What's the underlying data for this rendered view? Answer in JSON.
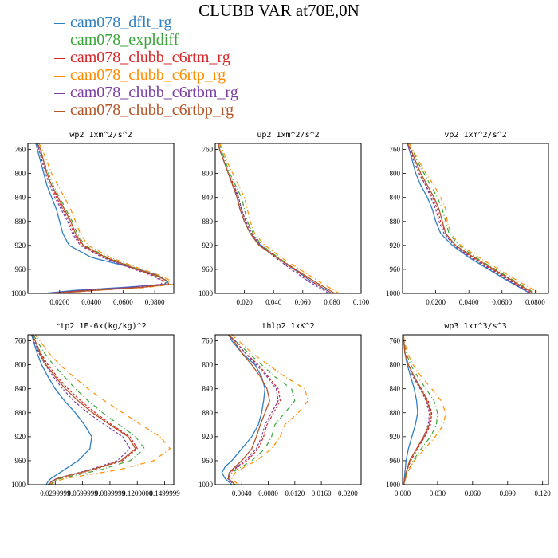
{
  "title": "CLUBB VAR at70E,0N",
  "legend": [
    {
      "name": "cam078_dflt_rg",
      "color": "#2f7fc1"
    },
    {
      "name": "cam078_expldiff",
      "color": "#3aa43a"
    },
    {
      "name": "cam078_clubb_c6rtm_rg",
      "color": "#d62728"
    },
    {
      "name": "cam078_clubb_c6rtp_rg",
      "color": "#ff8c00"
    },
    {
      "name": "cam078_clubb_c6rtbm_rg",
      "color": "#7b3fa0"
    },
    {
      "name": "cam078_clubb_c6rtbp_rg",
      "color": "#b5562a"
    }
  ],
  "chart_data": [
    {
      "type": "line",
      "title": "wp2  1xm^2/s^2",
      "xlim": [
        0.0,
        0.092
      ],
      "ylim": [
        1000,
        750
      ],
      "xticks": [
        0.02,
        0.04,
        0.06,
        0.08
      ],
      "xtick_labels": [
        "0.0200",
        "0.0400",
        "0.0600",
        "0.0800"
      ],
      "yticks": [
        760,
        800,
        840,
        880,
        920,
        960,
        1000
      ],
      "pressure": [
        750,
        760,
        780,
        800,
        820,
        840,
        860,
        880,
        900,
        920,
        940,
        960,
        970,
        980,
        985,
        990,
        995,
        1000
      ],
      "series": [
        {
          "name": "cam078_dflt_rg",
          "values": [
            0.005,
            0.006,
            0.008,
            0.01,
            0.012,
            0.015,
            0.018,
            0.02,
            0.022,
            0.026,
            0.04,
            0.07,
            0.082,
            0.088,
            0.086,
            0.06,
            0.03,
            0.01
          ]
        },
        {
          "name": "cam078_expldiff",
          "values": [
            0.006,
            0.007,
            0.01,
            0.013,
            0.016,
            0.02,
            0.024,
            0.028,
            0.031,
            0.036,
            0.05,
            0.07,
            0.08,
            0.089,
            0.09,
            0.07,
            0.04,
            0.015
          ]
        },
        {
          "name": "cam078_clubb_c6rtm_rg",
          "values": [
            0.006,
            0.007,
            0.009,
            0.012,
            0.015,
            0.018,
            0.022,
            0.026,
            0.029,
            0.034,
            0.048,
            0.068,
            0.079,
            0.086,
            0.087,
            0.066,
            0.036,
            0.013
          ]
        },
        {
          "name": "cam078_clubb_c6rtp_rg",
          "values": [
            0.007,
            0.009,
            0.012,
            0.015,
            0.019,
            0.023,
            0.027,
            0.03,
            0.033,
            0.038,
            0.052,
            0.072,
            0.083,
            0.091,
            0.092,
            0.075,
            0.045,
            0.018
          ]
        },
        {
          "name": "cam078_clubb_c6rtbm_rg",
          "values": [
            0.006,
            0.007,
            0.009,
            0.011,
            0.014,
            0.017,
            0.021,
            0.025,
            0.028,
            0.033,
            0.047,
            0.067,
            0.078,
            0.085,
            0.084,
            0.064,
            0.034,
            0.012
          ]
        },
        {
          "name": "cam078_clubb_c6rtbp_rg",
          "values": [
            0.006,
            0.008,
            0.01,
            0.012,
            0.015,
            0.019,
            0.023,
            0.027,
            0.03,
            0.035,
            0.049,
            0.069,
            0.081,
            0.088,
            0.089,
            0.072,
            0.042,
            0.016
          ]
        }
      ]
    },
    {
      "type": "line",
      "title": "up2  1xm^2/s^2",
      "xlim": [
        0.0,
        0.1
      ],
      "ylim": [
        1000,
        750
      ],
      "xticks": [
        0.02,
        0.04,
        0.06,
        0.08,
        0.1
      ],
      "xtick_labels": [
        "0.020",
        "0.040",
        "0.060",
        "0.080",
        "0.100"
      ],
      "yticks": [
        760,
        800,
        840,
        880,
        920,
        960,
        1000
      ],
      "pressure": [
        750,
        760,
        780,
        800,
        820,
        840,
        860,
        880,
        900,
        920,
        940,
        960,
        980,
        1000
      ],
      "series": [
        {
          "name": "cam078_dflt_rg",
          "values": [
            0.002,
            0.003,
            0.006,
            0.009,
            0.012,
            0.015,
            0.017,
            0.02,
            0.024,
            0.031,
            0.042,
            0.054,
            0.066,
            0.08
          ]
        },
        {
          "name": "cam078_expldiff",
          "values": [
            0.003,
            0.004,
            0.007,
            0.01,
            0.014,
            0.018,
            0.02,
            0.022,
            0.026,
            0.032,
            0.043,
            0.055,
            0.068,
            0.082
          ]
        },
        {
          "name": "cam078_clubb_c6rtm_rg",
          "values": [
            0.002,
            0.003,
            0.006,
            0.009,
            0.013,
            0.016,
            0.018,
            0.021,
            0.025,
            0.031,
            0.042,
            0.054,
            0.066,
            0.08
          ]
        },
        {
          "name": "cam078_clubb_c6rtp_rg",
          "values": [
            0.003,
            0.005,
            0.008,
            0.012,
            0.016,
            0.02,
            0.022,
            0.024,
            0.027,
            0.034,
            0.045,
            0.058,
            0.071,
            0.085
          ]
        },
        {
          "name": "cam078_clubb_c6rtbm_rg",
          "values": [
            0.002,
            0.003,
            0.006,
            0.009,
            0.012,
            0.016,
            0.018,
            0.021,
            0.025,
            0.031,
            0.041,
            0.052,
            0.064,
            0.078
          ]
        },
        {
          "name": "cam078_clubb_c6rtbp_rg",
          "values": [
            0.002,
            0.003,
            0.006,
            0.009,
            0.012,
            0.015,
            0.017,
            0.02,
            0.024,
            0.03,
            0.042,
            0.055,
            0.068,
            0.082
          ]
        }
      ]
    },
    {
      "type": "line",
      "title": "vp2  1xm^2/s^2",
      "xlim": [
        0.0,
        0.088
      ],
      "ylim": [
        1000,
        750
      ],
      "xticks": [
        0.02,
        0.04,
        0.06,
        0.08
      ],
      "xtick_labels": [
        "0.0200",
        "0.0400",
        "0.0600",
        "0.0800"
      ],
      "yticks": [
        760,
        800,
        840,
        880,
        920,
        960,
        1000
      ],
      "pressure": [
        750,
        760,
        780,
        800,
        820,
        840,
        860,
        880,
        900,
        920,
        940,
        960,
        980,
        1000
      ],
      "series": [
        {
          "name": "cam078_dflt_rg",
          "values": [
            0.003,
            0.004,
            0.006,
            0.008,
            0.011,
            0.015,
            0.018,
            0.02,
            0.023,
            0.03,
            0.04,
            0.052,
            0.064,
            0.077
          ]
        },
        {
          "name": "cam078_expldiff",
          "values": [
            0.004,
            0.006,
            0.009,
            0.013,
            0.017,
            0.021,
            0.024,
            0.026,
            0.028,
            0.034,
            0.044,
            0.056,
            0.068,
            0.08
          ]
        },
        {
          "name": "cam078_clubb_c6rtm_rg",
          "values": [
            0.003,
            0.005,
            0.007,
            0.01,
            0.014,
            0.018,
            0.021,
            0.023,
            0.026,
            0.032,
            0.042,
            0.054,
            0.066,
            0.078
          ]
        },
        {
          "name": "cam078_clubb_c6rtp_rg",
          "values": [
            0.004,
            0.006,
            0.01,
            0.014,
            0.019,
            0.023,
            0.026,
            0.027,
            0.029,
            0.035,
            0.046,
            0.058,
            0.07,
            0.083
          ]
        },
        {
          "name": "cam078_clubb_c6rtbm_rg",
          "values": [
            0.003,
            0.004,
            0.007,
            0.01,
            0.014,
            0.017,
            0.02,
            0.022,
            0.025,
            0.031,
            0.041,
            0.053,
            0.065,
            0.077
          ]
        },
        {
          "name": "cam078_clubb_c6rtbp_rg",
          "values": [
            0.003,
            0.005,
            0.008,
            0.011,
            0.015,
            0.019,
            0.022,
            0.024,
            0.026,
            0.032,
            0.043,
            0.055,
            0.067,
            0.079
          ]
        }
      ]
    },
    {
      "type": "line",
      "title": "rtp2  1E-6x(kg/kg)^2",
      "xlim": [
        0.0,
        0.16
      ],
      "ylim": [
        1000,
        750
      ],
      "xticks": [
        0.03,
        0.06,
        0.09,
        0.12,
        0.15
      ],
      "xtick_labels": [
        "0.0299999",
        "0.0599999",
        "0.0899999",
        "0.1200000",
        "0.1499999"
      ],
      "yticks": [
        760,
        800,
        840,
        880,
        920,
        960,
        1000
      ],
      "pressure": [
        750,
        760,
        780,
        800,
        820,
        840,
        860,
        880,
        900,
        920,
        940,
        960,
        975,
        985,
        990,
        995,
        1000
      ],
      "series": [
        {
          "name": "cam078_dflt_rg",
          "values": [
            0.004,
            0.006,
            0.01,
            0.015,
            0.022,
            0.03,
            0.04,
            0.052,
            0.062,
            0.07,
            0.068,
            0.055,
            0.04,
            0.03,
            0.025,
            0.022,
            0.02
          ]
        },
        {
          "name": "cam078_expldiff",
          "values": [
            0.006,
            0.01,
            0.018,
            0.028,
            0.04,
            0.052,
            0.066,
            0.082,
            0.1,
            0.118,
            0.128,
            0.112,
            0.08,
            0.05,
            0.035,
            0.028,
            0.025
          ]
        },
        {
          "name": "cam078_clubb_c6rtm_rg",
          "values": [
            0.005,
            0.008,
            0.014,
            0.022,
            0.032,
            0.044,
            0.058,
            0.074,
            0.092,
            0.112,
            0.12,
            0.104,
            0.072,
            0.045,
            0.032,
            0.026,
            0.023
          ]
        },
        {
          "name": "cam078_clubb_c6rtp_rg",
          "values": [
            0.008,
            0.013,
            0.023,
            0.035,
            0.05,
            0.066,
            0.084,
            0.104,
            0.124,
            0.145,
            0.156,
            0.138,
            0.1,
            0.06,
            0.04,
            0.03,
            0.026
          ]
        },
        {
          "name": "cam078_clubb_c6rtbm_rg",
          "values": [
            0.004,
            0.007,
            0.012,
            0.019,
            0.028,
            0.038,
            0.05,
            0.066,
            0.084,
            0.104,
            0.112,
            0.098,
            0.068,
            0.043,
            0.031,
            0.025,
            0.022
          ]
        },
        {
          "name": "cam078_clubb_c6rtbp_rg",
          "values": [
            0.005,
            0.008,
            0.013,
            0.02,
            0.03,
            0.041,
            0.055,
            0.071,
            0.09,
            0.11,
            0.118,
            0.102,
            0.07,
            0.044,
            0.032,
            0.026,
            0.023
          ]
        }
      ]
    },
    {
      "type": "line",
      "title": "thlp2  1xK^2",
      "xlim": [
        0.0,
        0.022
      ],
      "ylim": [
        1000,
        750
      ],
      "xticks": [
        0.004,
        0.008,
        0.012,
        0.016,
        0.02
      ],
      "xtick_labels": [
        "0.0040",
        "0.0080",
        "0.0120",
        "0.0160",
        "0.0200"
      ],
      "yticks": [
        760,
        800,
        840,
        880,
        920,
        960,
        1000
      ],
      "pressure": [
        750,
        760,
        780,
        800,
        820,
        840,
        860,
        880,
        900,
        920,
        940,
        960,
        970,
        980,
        990,
        1000
      ],
      "series": [
        {
          "name": "cam078_dflt_rg",
          "values": [
            0.002,
            0.0025,
            0.004,
            0.006,
            0.007,
            0.0075,
            0.0073,
            0.007,
            0.0065,
            0.0055,
            0.004,
            0.0025,
            0.0015,
            0.001,
            0.0015,
            0.0025
          ]
        },
        {
          "name": "cam078_expldiff",
          "values": [
            0.002,
            0.003,
            0.005,
            0.007,
            0.009,
            0.0115,
            0.012,
            0.0105,
            0.009,
            0.0085,
            0.0075,
            0.0055,
            0.004,
            0.0025,
            0.002,
            0.003
          ]
        },
        {
          "name": "cam078_clubb_c6rtm_rg",
          "values": [
            0.002,
            0.003,
            0.0045,
            0.0065,
            0.008,
            0.0095,
            0.0098,
            0.0088,
            0.0078,
            0.0073,
            0.0065,
            0.0048,
            0.0035,
            0.0022,
            0.002,
            0.003
          ]
        },
        {
          "name": "cam078_clubb_c6rtp_rg",
          "values": [
            0.0025,
            0.0035,
            0.0055,
            0.008,
            0.0105,
            0.0135,
            0.014,
            0.0125,
            0.0105,
            0.0098,
            0.0085,
            0.0062,
            0.0045,
            0.003,
            0.0025,
            0.0035
          ]
        },
        {
          "name": "cam078_clubb_c6rtbm_rg",
          "values": [
            0.002,
            0.003,
            0.0045,
            0.0062,
            0.0078,
            0.0092,
            0.0095,
            0.0085,
            0.0075,
            0.007,
            0.0062,
            0.0045,
            0.0033,
            0.0021,
            0.0019,
            0.0028
          ]
        },
        {
          "name": "cam078_clubb_c6rtbp_rg",
          "values": [
            0.002,
            0.0028,
            0.004,
            0.0055,
            0.0068,
            0.0078,
            0.0082,
            0.0075,
            0.0068,
            0.0062,
            0.0055,
            0.004,
            0.003,
            0.0021,
            0.002,
            0.003
          ]
        }
      ]
    },
    {
      "type": "line",
      "title": "wp3  1xm^3/s^3",
      "xlim": [
        0.0,
        0.125
      ],
      "ylim": [
        1000,
        750
      ],
      "xticks": [
        0.0,
        0.03,
        0.06,
        0.09,
        0.12
      ],
      "xtick_labels": [
        "0.000",
        "0.030",
        "0.060",
        "0.090",
        "0.120"
      ],
      "yticks": [
        760,
        800,
        840,
        880,
        920,
        960,
        1000
      ],
      "pressure": [
        750,
        760,
        780,
        800,
        820,
        840,
        860,
        880,
        900,
        920,
        940,
        960,
        980,
        1000
      ],
      "series": [
        {
          "name": "cam078_dflt_rg",
          "values": [
            0.0005,
            0.001,
            0.002,
            0.004,
            0.007,
            0.01,
            0.012,
            0.013,
            0.011,
            0.008,
            0.005,
            0.003,
            0.002,
            0.001
          ]
        },
        {
          "name": "cam078_expldiff",
          "values": [
            0.0005,
            0.001,
            0.003,
            0.007,
            0.013,
            0.02,
            0.027,
            0.03,
            0.029,
            0.024,
            0.016,
            0.009,
            0.004,
            0.001
          ]
        },
        {
          "name": "cam078_clubb_c6rtm_rg",
          "values": [
            0.0005,
            0.001,
            0.002,
            0.005,
            0.01,
            0.016,
            0.022,
            0.025,
            0.024,
            0.019,
            0.013,
            0.007,
            0.003,
            0.001
          ]
        },
        {
          "name": "cam078_clubb_c6rtp_rg",
          "values": [
            0.0008,
            0.0015,
            0.004,
            0.009,
            0.016,
            0.025,
            0.033,
            0.037,
            0.035,
            0.028,
            0.019,
            0.01,
            0.004,
            0.001
          ]
        },
        {
          "name": "cam078_clubb_c6rtbm_rg",
          "values": [
            0.0005,
            0.001,
            0.002,
            0.005,
            0.009,
            0.015,
            0.02,
            0.023,
            0.022,
            0.018,
            0.012,
            0.006,
            0.003,
            0.001
          ]
        },
        {
          "name": "cam078_clubb_c6rtbp_rg",
          "values": [
            0.0005,
            0.001,
            0.002,
            0.005,
            0.01,
            0.016,
            0.021,
            0.024,
            0.023,
            0.018,
            0.012,
            0.006,
            0.003,
            0.001
          ]
        }
      ]
    }
  ]
}
